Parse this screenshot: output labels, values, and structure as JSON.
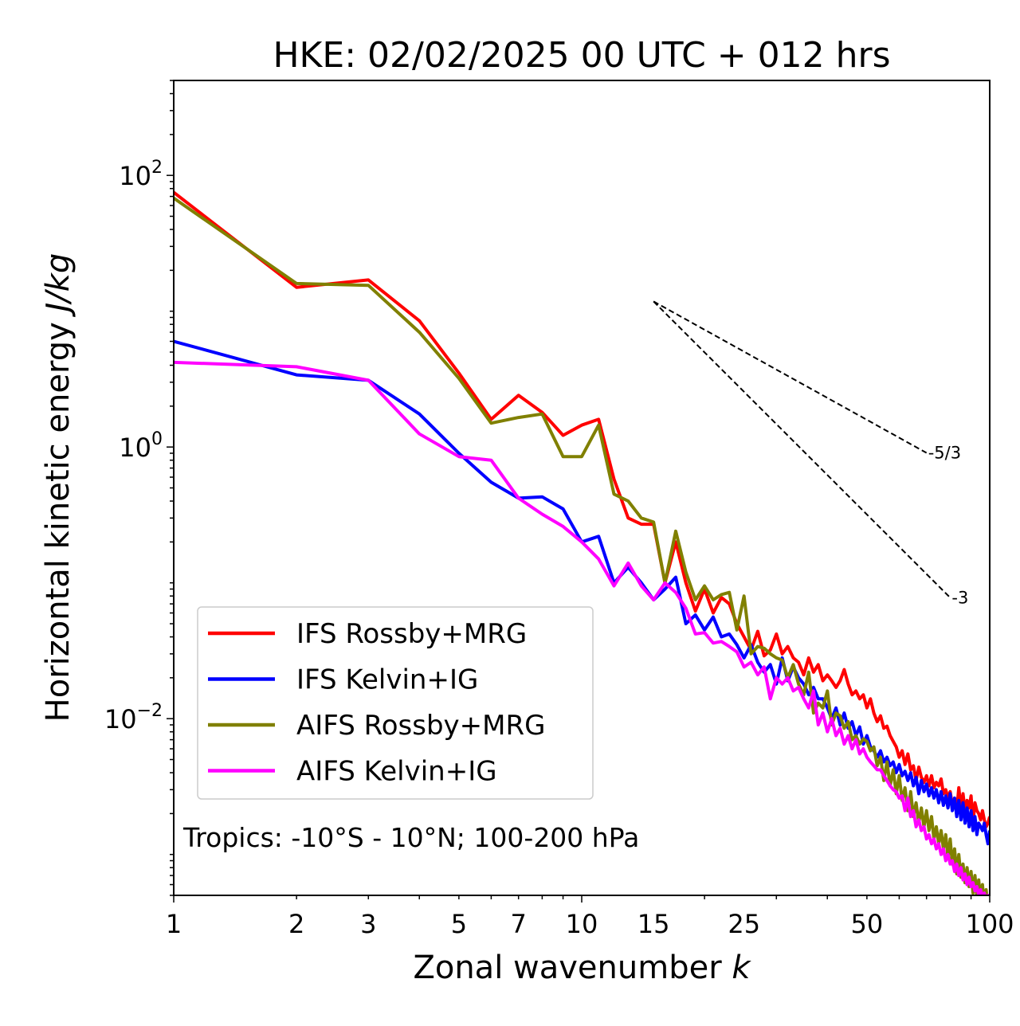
{
  "chart_data": {
    "type": "line",
    "title": "HKE: 02/02/2025 00 UTC + 012 hrs",
    "xlabel": {
      "text": "Zonal wavenumber ",
      "var": "k"
    },
    "ylabel": {
      "text": "Horizontal kinetic energy ",
      "units": "J/kg"
    },
    "x_scale": "log",
    "y_scale": "log",
    "xlim": [
      1,
      100
    ],
    "ylim": [
      0.0005,
      500
    ],
    "grid": false,
    "legend_position": "lower-left",
    "x_ticks": [
      {
        "value": 1,
        "label": "1"
      },
      {
        "value": 2,
        "label": "2"
      },
      {
        "value": 3,
        "label": "3"
      },
      {
        "value": 5,
        "label": "5"
      },
      {
        "value": 7,
        "label": "7"
      },
      {
        "value": 10,
        "label": "10"
      },
      {
        "value": 15,
        "label": "15"
      },
      {
        "value": 25,
        "label": "25"
      },
      {
        "value": 50,
        "label": "50"
      },
      {
        "value": 100,
        "label": "100"
      }
    ],
    "y_ticks": [
      {
        "value": 0.01,
        "base": "10",
        "exp": "−2"
      },
      {
        "value": 1,
        "base": "10",
        "exp": "0"
      },
      {
        "value": 100,
        "base": "10",
        "exp": "2"
      }
    ],
    "annotation": "Tropics: -10°S - 10°N; 100-200 hPa",
    "reference_slopes": [
      {
        "label": "-5/3",
        "slope": -1.6667,
        "x_start": 15,
        "y_start": 11.8,
        "x_end": 70
      },
      {
        "label": "-3",
        "slope": -3,
        "x_start": 15,
        "y_start": 11.8,
        "x_end": 80
      }
    ],
    "series": [
      {
        "name": "IFS Rossby+MRG",
        "color": "#ff0000",
        "x": [
          1,
          2,
          3,
          4,
          5,
          6,
          7,
          8,
          9,
          10,
          11,
          12,
          13,
          14,
          15,
          16,
          17,
          18,
          19,
          20,
          21,
          22,
          23,
          24,
          25,
          26,
          27,
          28,
          29,
          30,
          31,
          32,
          33,
          34,
          35,
          36,
          37,
          38,
          39,
          40,
          41,
          42,
          43,
          44,
          45,
          46,
          47,
          48,
          49,
          50,
          51,
          52,
          53,
          54,
          55,
          56,
          57,
          58,
          59,
          60,
          61,
          62,
          63,
          64,
          65,
          66,
          67,
          68,
          69,
          70,
          71,
          72,
          73,
          74,
          75,
          76,
          77,
          78,
          79,
          80,
          81,
          82,
          83,
          84,
          85,
          86,
          87,
          88,
          89,
          90,
          91,
          92,
          93,
          94,
          95,
          96,
          97,
          98,
          99,
          100
        ],
        "y": [
          75,
          15,
          17,
          8.5,
          3.5,
          1.6,
          2.4,
          1.8,
          1.22,
          1.45,
          1.6,
          0.58,
          0.3,
          0.27,
          0.27,
          0.1,
          0.2,
          0.1,
          0.062,
          0.09,
          0.06,
          0.078,
          0.07,
          0.05,
          0.04,
          0.032,
          0.044,
          0.029,
          0.032,
          0.042,
          0.03,
          0.034,
          0.028,
          0.026,
          0.021,
          0.028,
          0.022,
          0.025,
          0.019,
          0.021,
          0.019,
          0.017,
          0.019,
          0.023,
          0.018,
          0.015,
          0.016,
          0.014,
          0.015,
          0.012,
          0.014,
          0.011,
          0.0095,
          0.0105,
          0.0085,
          0.0088,
          0.0075,
          0.0068,
          0.0062,
          0.0052,
          0.0058,
          0.0046,
          0.0055,
          0.0042,
          0.0045,
          0.0035,
          0.0044,
          0.0037,
          0.0034,
          0.0038,
          0.0032,
          0.0038,
          0.0031,
          0.0034,
          0.0032,
          0.0036,
          0.0028,
          0.003,
          0.0026,
          0.0029,
          0.0023,
          0.0026,
          0.0021,
          0.0031,
          0.0022,
          0.0028,
          0.0021,
          0.0025,
          0.0022,
          0.0027,
          0.0017,
          0.0024,
          0.0021,
          0.002,
          0.0018,
          0.0021,
          0.0018,
          0.0016,
          0.0017,
          0.0019
        ]
      },
      {
        "name": "IFS Kelvin+IG",
        "color": "#0000ff",
        "x": [
          1,
          2,
          3,
          4,
          5,
          6,
          7,
          8,
          9,
          10,
          11,
          12,
          13,
          14,
          15,
          16,
          17,
          18,
          19,
          20,
          21,
          22,
          23,
          24,
          25,
          26,
          27,
          28,
          29,
          30,
          31,
          32,
          33,
          34,
          35,
          36,
          37,
          38,
          39,
          40,
          41,
          42,
          43,
          44,
          45,
          46,
          47,
          48,
          49,
          50,
          51,
          52,
          53,
          54,
          55,
          56,
          57,
          58,
          59,
          60,
          61,
          62,
          63,
          64,
          65,
          66,
          67,
          68,
          69,
          70,
          71,
          72,
          73,
          74,
          75,
          76,
          77,
          78,
          79,
          80,
          81,
          82,
          83,
          84,
          85,
          86,
          87,
          88,
          89,
          90,
          91,
          92,
          93,
          94,
          95,
          96,
          97,
          98,
          99,
          100
        ],
        "y": [
          6,
          3.4,
          3.1,
          1.75,
          0.9,
          0.55,
          0.42,
          0.43,
          0.35,
          0.2,
          0.22,
          0.1,
          0.13,
          0.1,
          0.075,
          0.09,
          0.11,
          0.05,
          0.058,
          0.045,
          0.056,
          0.04,
          0.042,
          0.035,
          0.028,
          0.035,
          0.026,
          0.022,
          0.025,
          0.018,
          0.028,
          0.019,
          0.024,
          0.02,
          0.018,
          0.015,
          0.017,
          0.014,
          0.014,
          0.012,
          0.01,
          0.012,
          0.009,
          0.011,
          0.0085,
          0.0095,
          0.0075,
          0.0087,
          0.0065,
          0.0075,
          0.0062,
          0.0058,
          0.0052,
          0.0058,
          0.0048,
          0.0052,
          0.0045,
          0.0048,
          0.004,
          0.0046,
          0.0038,
          0.0041,
          0.0035,
          0.004,
          0.0032,
          0.0037,
          0.0028,
          0.0035,
          0.0029,
          0.0033,
          0.0027,
          0.0031,
          0.0026,
          0.003,
          0.0024,
          0.0029,
          0.0023,
          0.0027,
          0.0022,
          0.0028,
          0.0021,
          0.0026,
          0.0019,
          0.0025,
          0.0018,
          0.0024,
          0.0017,
          0.0022,
          0.0016,
          0.0021,
          0.0015,
          0.0019,
          0.0014,
          0.0017,
          0.0016,
          0.0015,
          0.0017,
          0.0014,
          0.0012,
          0.0015
        ]
      },
      {
        "name": "AIFS Rossby+MRG",
        "color": "#808000",
        "x": [
          1,
          2,
          3,
          4,
          5,
          6,
          7,
          8,
          9,
          10,
          11,
          12,
          13,
          14,
          15,
          16,
          17,
          18,
          19,
          20,
          21,
          22,
          23,
          24,
          25,
          26,
          27,
          28,
          29,
          30,
          31,
          32,
          33,
          34,
          35,
          36,
          37,
          38,
          39,
          40,
          41,
          42,
          43,
          44,
          45,
          46,
          47,
          48,
          49,
          50,
          51,
          52,
          53,
          54,
          55,
          56,
          57,
          58,
          59,
          60,
          61,
          62,
          63,
          64,
          65,
          66,
          67,
          68,
          69,
          70,
          71,
          72,
          73,
          74,
          75,
          76,
          77,
          78,
          79,
          80,
          81,
          82,
          83,
          84,
          85,
          86,
          87,
          88,
          89,
          90,
          91,
          92,
          93,
          94,
          95,
          96,
          97,
          98,
          99,
          100
        ],
        "y": [
          68,
          16,
          15.5,
          7,
          3.2,
          1.5,
          1.65,
          1.75,
          0.85,
          0.85,
          1.45,
          0.45,
          0.4,
          0.3,
          0.28,
          0.1,
          0.24,
          0.12,
          0.075,
          0.095,
          0.075,
          0.082,
          0.085,
          0.045,
          0.08,
          0.03,
          0.034,
          0.033,
          0.03,
          0.028,
          0.027,
          0.02,
          0.025,
          0.018,
          0.015,
          0.022,
          0.011,
          0.013,
          0.012,
          0.016,
          0.009,
          0.011,
          0.0105,
          0.0085,
          0.0095,
          0.007,
          0.0075,
          0.0065,
          0.0071,
          0.0068,
          0.0058,
          0.0062,
          0.0045,
          0.0052,
          0.0035,
          0.0048,
          0.0032,
          0.0042,
          0.0028,
          0.0038,
          0.0025,
          0.0031,
          0.0021,
          0.0029,
          0.0019,
          0.0024,
          0.0017,
          0.0022,
          0.0016,
          0.0021,
          0.0015,
          0.0019,
          0.0013,
          0.0016,
          0.0012,
          0.0015,
          0.0011,
          0.0014,
          0.00095,
          0.0013,
          0.00085,
          0.0011,
          0.00072,
          0.001,
          0.00068,
          0.00085,
          0.00062,
          0.0008,
          0.00058,
          0.00075,
          0.00052,
          0.0007,
          0.00048,
          0.00065,
          0.00045,
          0.0006,
          0.00042,
          0.00055,
          0.0004,
          0.0005
        ]
      },
      {
        "name": "AIFS Kelvin+IG",
        "color": "#ff00ff",
        "x": [
          1,
          2,
          3,
          4,
          5,
          6,
          7,
          8,
          9,
          10,
          11,
          12,
          13,
          14,
          15,
          16,
          17,
          18,
          19,
          20,
          21,
          22,
          23,
          24,
          25,
          26,
          27,
          28,
          29,
          30,
          31,
          32,
          33,
          34,
          35,
          36,
          37,
          38,
          39,
          40,
          41,
          42,
          43,
          44,
          45,
          46,
          47,
          48,
          49,
          50,
          51,
          52,
          53,
          54,
          55,
          56,
          57,
          58,
          59,
          60,
          61,
          62,
          63,
          64,
          65,
          66,
          67,
          68,
          69,
          70,
          71,
          72,
          73,
          74,
          75,
          76,
          77,
          78,
          79,
          80,
          81,
          82,
          83,
          84,
          85,
          86,
          87,
          88,
          89,
          90,
          91,
          92,
          93,
          94,
          95,
          96,
          97,
          98,
          99,
          100
        ],
        "y": [
          4.2,
          3.9,
          3.1,
          1.25,
          0.85,
          0.8,
          0.42,
          0.32,
          0.26,
          0.2,
          0.15,
          0.095,
          0.14,
          0.095,
          0.075,
          0.1,
          0.085,
          0.065,
          0.042,
          0.043,
          0.036,
          0.037,
          0.034,
          0.031,
          0.024,
          0.026,
          0.021,
          0.024,
          0.014,
          0.02,
          0.018,
          0.02,
          0.016,
          0.017,
          0.014,
          0.012,
          0.016,
          0.009,
          0.011,
          0.008,
          0.01,
          0.0075,
          0.0085,
          0.0065,
          0.0075,
          0.006,
          0.007,
          0.0055,
          0.006,
          0.0052,
          0.0048,
          0.0045,
          0.0042,
          0.0042,
          0.0038,
          0.0035,
          0.0032,
          0.003,
          0.0029,
          0.0026,
          0.0027,
          0.0021,
          0.0026,
          0.0019,
          0.0021,
          0.0016,
          0.0018,
          0.0015,
          0.0016,
          0.0013,
          0.0014,
          0.0012,
          0.0013,
          0.0011,
          0.0012,
          0.001,
          0.0011,
          0.0009,
          0.001,
          0.00085,
          0.0009,
          0.00075,
          0.00085,
          0.0007,
          0.0008,
          0.00065,
          0.00072,
          0.0006,
          0.00068,
          0.00058,
          0.00062,
          0.00054,
          0.00058,
          0.0005,
          0.00055,
          0.00048,
          0.00052,
          0.00045,
          0.0005,
          0.00044
        ]
      }
    ]
  }
}
